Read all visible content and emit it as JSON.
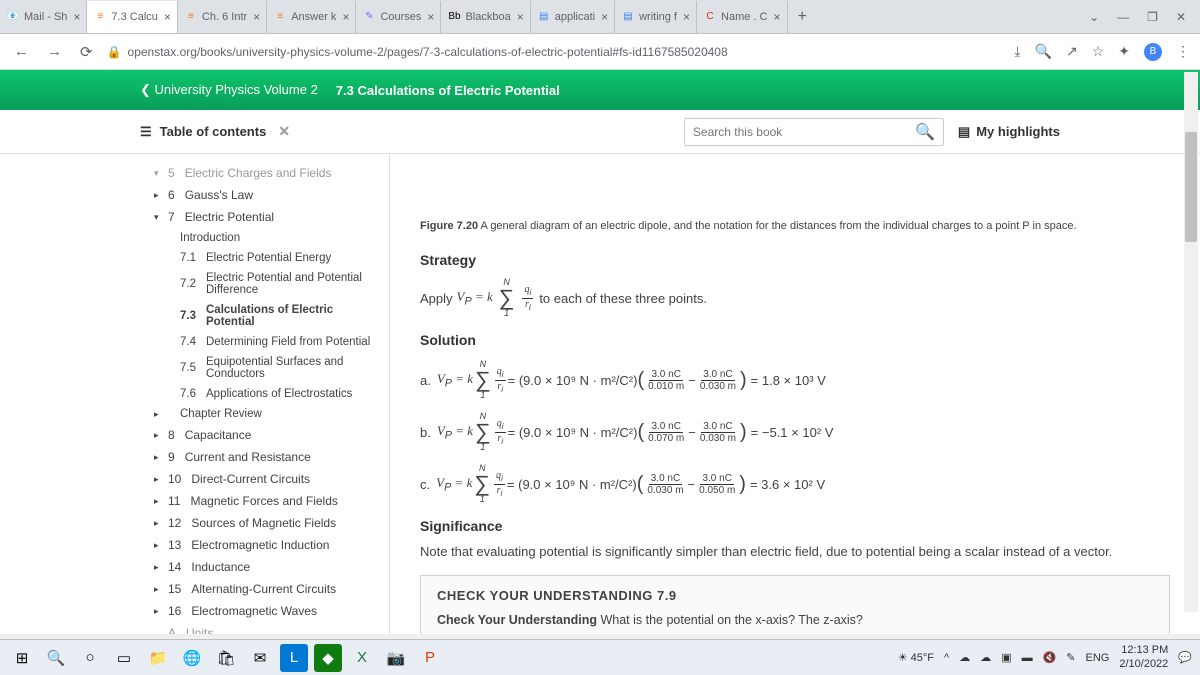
{
  "tabs": [
    {
      "icon": "📧",
      "title": "Mail - Sh",
      "iconColor": "#0078d4"
    },
    {
      "icon": "≡",
      "title": "7.3 Calcu",
      "iconColor": "#f47b20",
      "active": true
    },
    {
      "icon": "≡",
      "title": "Ch. 6 Intr",
      "iconColor": "#f47b20"
    },
    {
      "icon": "≡",
      "title": "Answer k",
      "iconColor": "#f47b20"
    },
    {
      "icon": "✎",
      "title": "Courses",
      "iconColor": "#7b68ee"
    },
    {
      "icon": "Bb",
      "title": "Blackboa",
      "iconColor": "#000"
    },
    {
      "icon": "▤",
      "title": "applicati",
      "iconColor": "#4285f4"
    },
    {
      "icon": "▤",
      "title": "writing f",
      "iconColor": "#4285f4"
    },
    {
      "icon": "C",
      "title": "Name . C",
      "iconColor": "#d93025"
    }
  ],
  "url": "openstax.org/books/university-physics-volume-2/pages/7-3-calculations-of-electric-potential#fs-id1167585020408",
  "header": {
    "back": "University Physics Volume 2",
    "title": "7.3 Calculations of Electric Potential"
  },
  "toolbar": {
    "toc": "Table of contents",
    "searchPlaceholder": "Search this book",
    "highlights": "My highlights"
  },
  "toc": [
    {
      "num": "5",
      "label": "Electric Charges and Fields",
      "caret": "▾",
      "faded": true
    },
    {
      "num": "6",
      "label": "Gauss's Law",
      "caret": "▸"
    },
    {
      "num": "7",
      "label": "Electric Potential",
      "caret": "▾"
    },
    {
      "label": "Introduction",
      "sub": true
    },
    {
      "num": "7.1",
      "label": "Electric Potential Energy",
      "sub": true
    },
    {
      "num": "7.2",
      "label": "Electric Potential and Potential Difference",
      "sub": true
    },
    {
      "num": "7.3",
      "label": "Calculations of Electric Potential",
      "sub": true,
      "active": true
    },
    {
      "num": "7.4",
      "label": "Determining Field from Potential",
      "sub": true
    },
    {
      "num": "7.5",
      "label": "Equipotential Surfaces and Conductors",
      "sub": true
    },
    {
      "num": "7.6",
      "label": "Applications of Electrostatics",
      "sub": true
    },
    {
      "label": "Chapter Review",
      "sub": true,
      "caret": "▸"
    },
    {
      "num": "8",
      "label": "Capacitance",
      "caret": "▸"
    },
    {
      "num": "9",
      "label": "Current and Resistance",
      "caret": "▸"
    },
    {
      "num": "10",
      "label": "Direct-Current Circuits",
      "caret": "▸"
    },
    {
      "num": "11",
      "label": "Magnetic Forces and Fields",
      "caret": "▸"
    },
    {
      "num": "12",
      "label": "Sources of Magnetic Fields",
      "caret": "▸"
    },
    {
      "num": "13",
      "label": "Electromagnetic Induction",
      "caret": "▸"
    },
    {
      "num": "14",
      "label": "Inductance",
      "caret": "▸"
    },
    {
      "num": "15",
      "label": "Alternating-Current Circuits",
      "caret": "▸"
    },
    {
      "num": "16",
      "label": "Electromagnetic Waves",
      "caret": "▸"
    },
    {
      "num": "A",
      "label": "Units",
      "caret": "",
      "faded": true
    }
  ],
  "content": {
    "figLabel": "Figure 7.20",
    "figText": "A general diagram of an electric dipole, and the notation for the distances from the individual charges to a point P in space.",
    "strategy": "Strategy",
    "strategyText": "to each of these three points.",
    "applyPrefix": "Apply",
    "solution": "Solution",
    "solA": {
      "label": "a.",
      "const": "(9.0 × 10⁹ N · m²/C²)",
      "n1": "3.0 nC",
      "d1": "0.010 m",
      "n2": "3.0 nC",
      "d2": "0.030 m",
      "res": "= 1.8 × 10³ V"
    },
    "solB": {
      "label": "b.",
      "const": "(9.0 × 10⁹ N · m²/C²)",
      "n1": "3.0 nC",
      "d1": "0.070 m",
      "n2": "3.0 nC",
      "d2": "0.030 m",
      "res": "= −5.1 × 10² V"
    },
    "solC": {
      "label": "c.",
      "const": "(9.0 × 10⁹ N · m²/C²)",
      "n1": "3.0 nC",
      "d1": "0.030 m",
      "n2": "3.0 nC",
      "d2": "0.050 m",
      "res": "= 3.6 × 10² V"
    },
    "significance": "Significance",
    "sigText": "Note that evaluating potential is significantly simpler than electric field, due to potential being a scalar instead of a vector.",
    "checkTitle": "CHECK YOUR UNDERSTANDING 7.9",
    "checkLabel": "Check Your Understanding",
    "checkQ": "What is the potential on the x-axis? The z-axis?"
  },
  "taskbar": {
    "weather": "45°F",
    "lang": "ENG",
    "time": "12:13 PM",
    "date": "2/10/2022"
  }
}
